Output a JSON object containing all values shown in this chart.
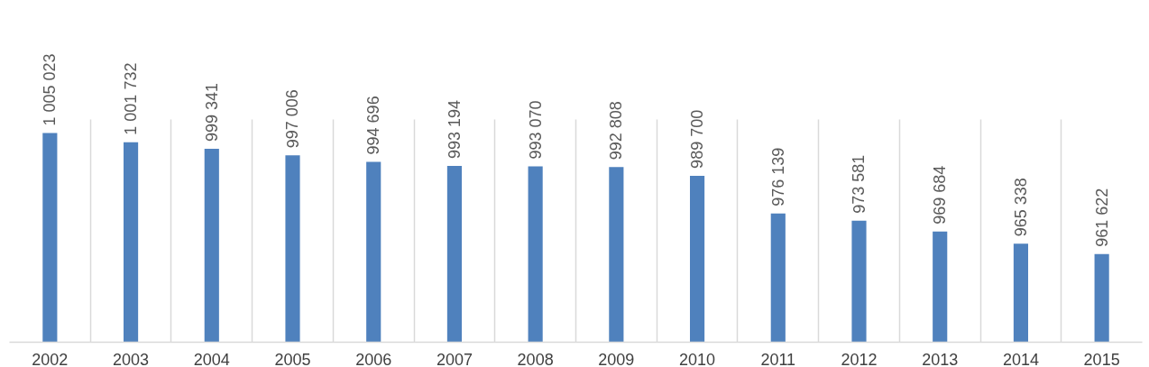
{
  "chart_data": {
    "type": "bar",
    "categories": [
      "2002",
      "2003",
      "2004",
      "2005",
      "2006",
      "2007",
      "2008",
      "2009",
      "2010",
      "2011",
      "2012",
      "2013",
      "2014",
      "2015"
    ],
    "values": [
      1005023,
      1001732,
      999341,
      997006,
      994696,
      993194,
      993070,
      992808,
      989700,
      976139,
      973581,
      969684,
      965338,
      961622
    ],
    "value_labels": [
      "1 005 023",
      "1 001 732",
      "999 341",
      "997 006",
      "994 696",
      "993 194",
      "993 070",
      "992 808",
      "989 700",
      "976 139",
      "973 581",
      "969 684",
      "965 338",
      "961 622"
    ],
    "color": "#4f81bd",
    "ylim": [
      930000,
      1010000
    ],
    "grid": "x"
  }
}
